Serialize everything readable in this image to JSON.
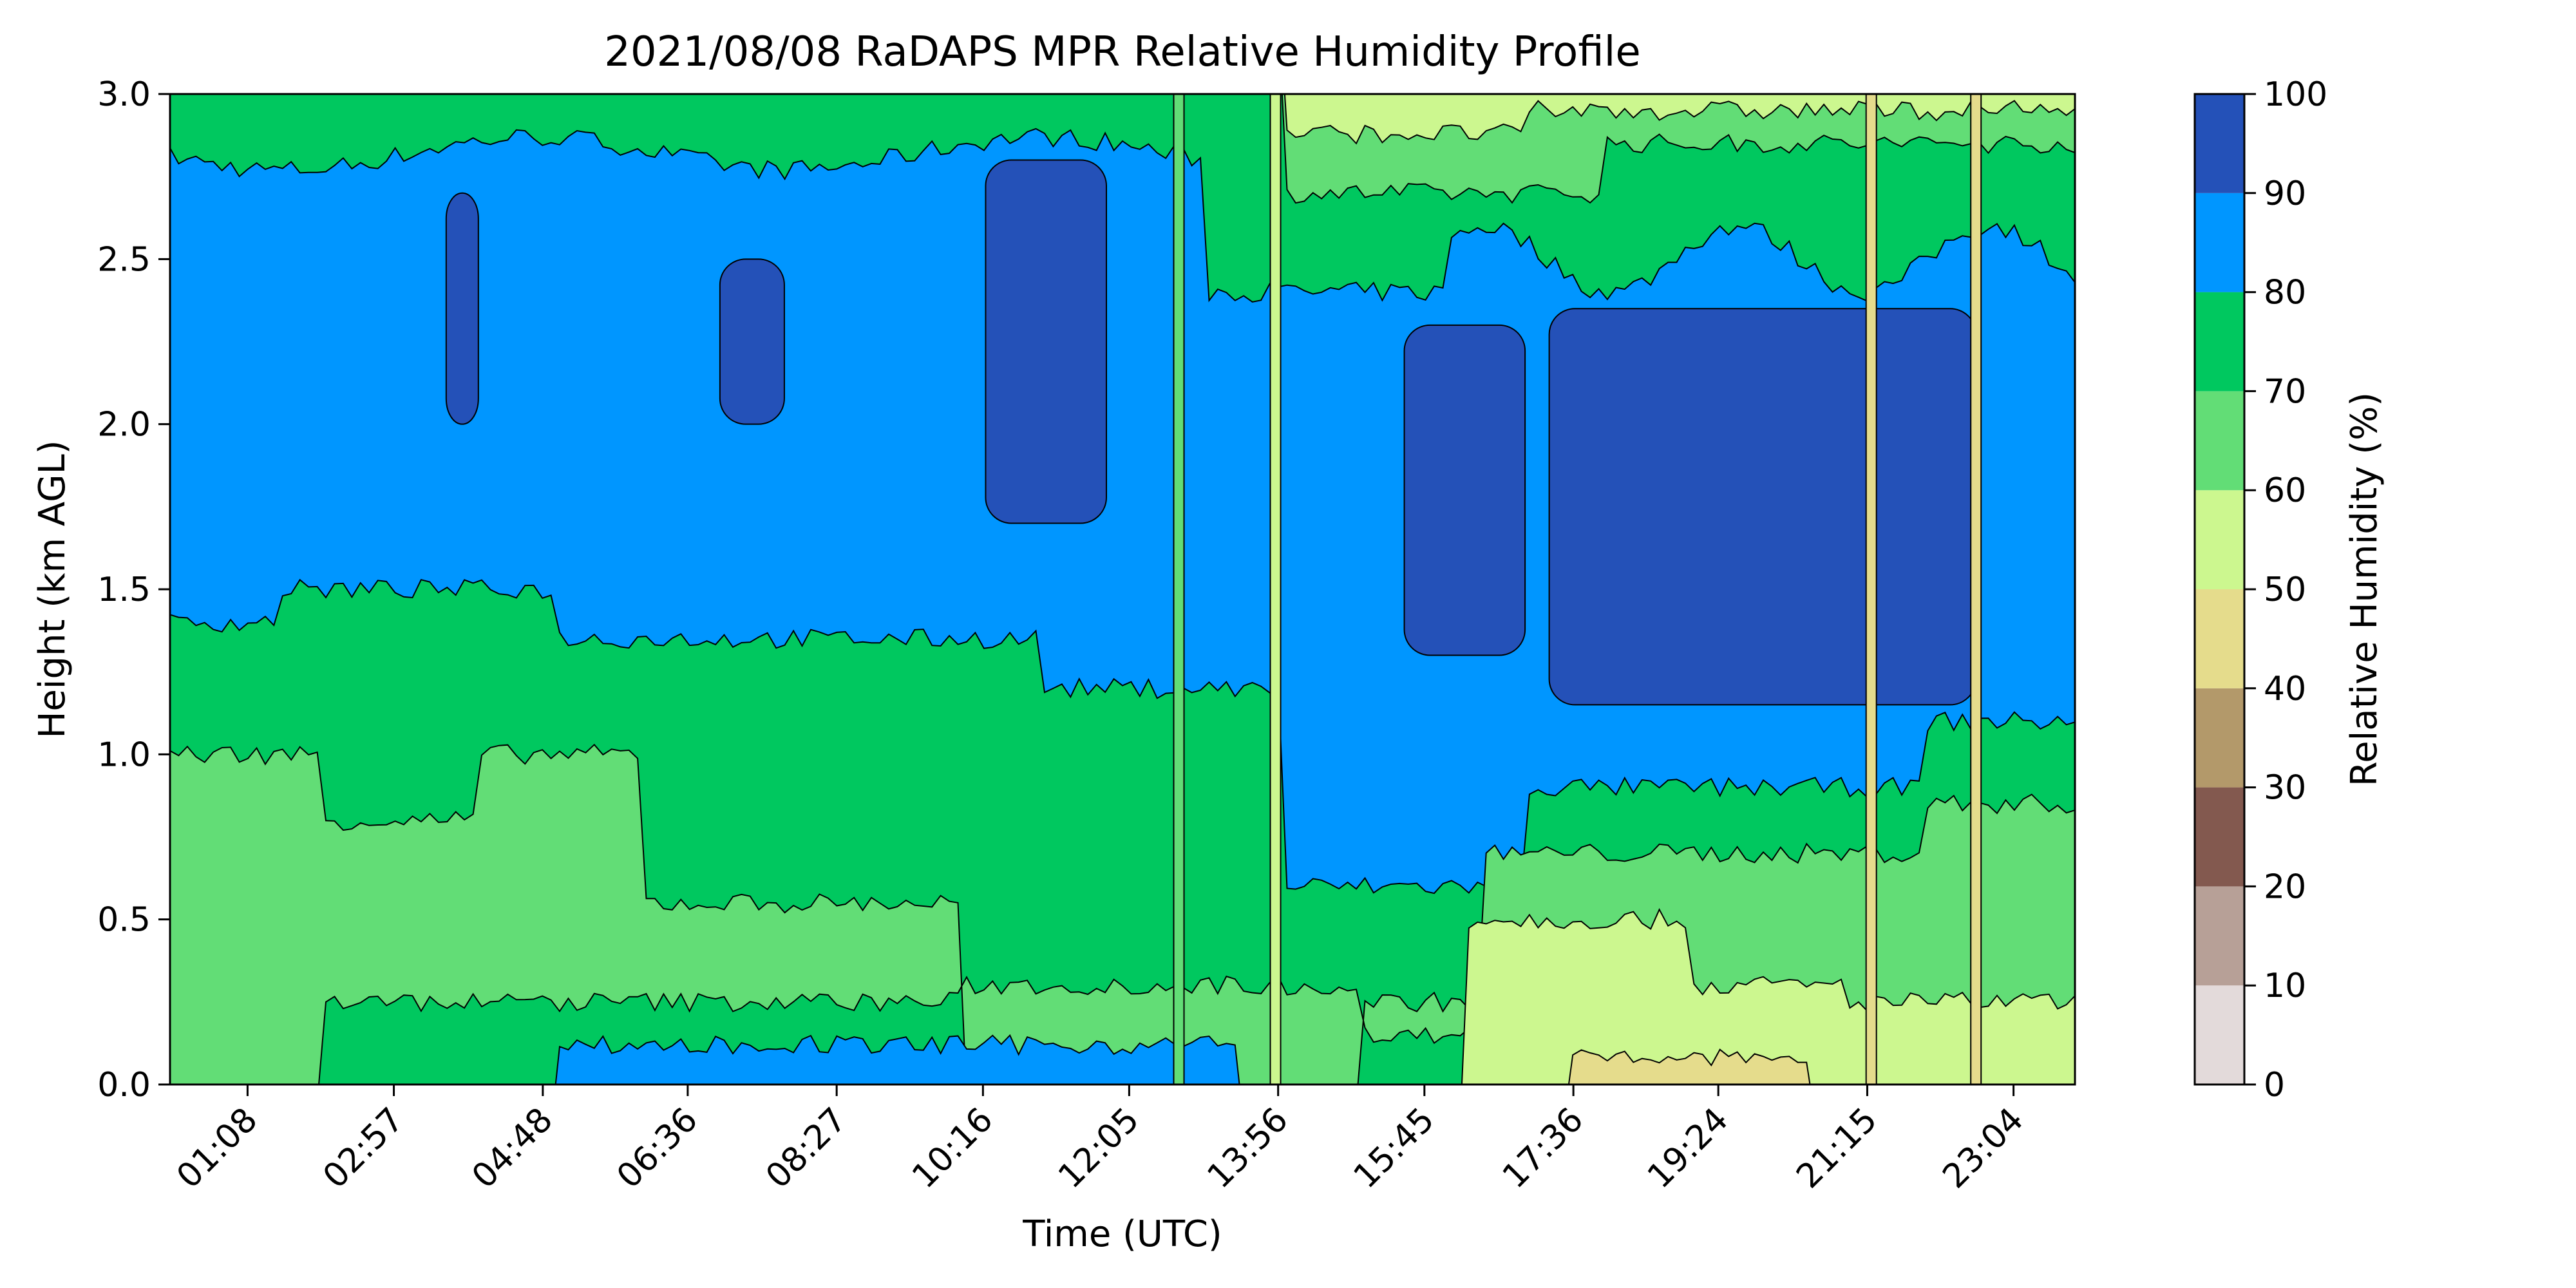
{
  "chart_data": {
    "type": "filled_contour",
    "title": "2021/08/08 RaDAPS MPR Relative Humidity Profile",
    "xlabel": "Time (UTC)",
    "ylabel": "Height (km AGL)",
    "xlim_hours": [
      0.17,
      23.83
    ],
    "ylim": [
      0.0,
      3.0
    ],
    "x_tick_labels": [
      "01:08",
      "02:57",
      "04:48",
      "06:36",
      "08:27",
      "10:16",
      "12:05",
      "13:56",
      "15:45",
      "17:36",
      "19:24",
      "21:15",
      "23:04"
    ],
    "x_tick_hours": [
      1.133,
      2.95,
      4.8,
      6.6,
      8.45,
      10.267,
      12.083,
      13.933,
      15.75,
      17.6,
      19.4,
      21.25,
      23.067
    ],
    "y_ticks": [
      0.0,
      0.5,
      1.0,
      1.5,
      2.0,
      2.5,
      3.0
    ],
    "y_tick_labels": [
      "0.0",
      "0.5",
      "1.0",
      "1.5",
      "2.0",
      "2.5",
      "3.0"
    ],
    "colorbar": {
      "label": "Relative Humidity (%)",
      "levels": [
        0,
        10,
        20,
        30,
        40,
        50,
        60,
        70,
        80,
        90,
        100
      ],
      "level_labels": [
        "0",
        "10",
        "20",
        "30",
        "40",
        "50",
        "60",
        "70",
        "80",
        "90",
        "100"
      ],
      "colors": [
        "#e3dada",
        "#b7a097",
        "#83594f",
        "#b3996a",
        "#e5dc8c",
        "#ccf78f",
        "#62dd76",
        "#00c85f",
        "#0096ff",
        "#2451b8"
      ]
    },
    "humidity_field_bands": [
      {
        "rh_range": [
          80,
          90
        ],
        "description_free": true,
        "height_range_km": [
          1.3,
          2.85
        ]
      },
      {
        "rh_range": [
          70,
          80
        ],
        "height_range_km": [
          0.9,
          1.4
        ]
      },
      {
        "rh_range": [
          60,
          70
        ],
        "height_range_km": [
          0.05,
          0.9
        ]
      }
    ]
  }
}
